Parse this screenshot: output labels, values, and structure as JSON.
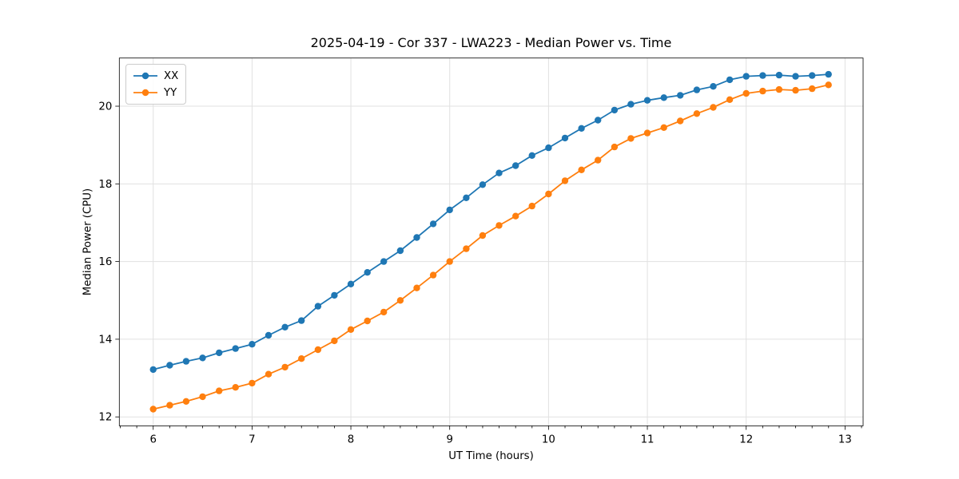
{
  "chart_data": {
    "type": "line",
    "title": "2025-04-19 - Cor 337 - LWA223 - Median Power vs. Time",
    "xlabel": "UT Time (hours)",
    "ylabel": "Median Power (CPU)",
    "xlim": [
      5.657,
      13.183
    ],
    "ylim": [
      11.77,
      21.24
    ],
    "xticks": [
      6,
      7,
      8,
      9,
      10,
      11,
      12,
      13
    ],
    "yticks": [
      12,
      14,
      16,
      18,
      20
    ],
    "x_minor_step": 0.16667,
    "grid": true,
    "legend_position": "upper-left",
    "marker": "circle",
    "x": [
      6.0,
      6.167,
      6.333,
      6.5,
      6.667,
      6.833,
      7.0,
      7.167,
      7.333,
      7.5,
      7.667,
      7.833,
      8.0,
      8.167,
      8.333,
      8.5,
      8.667,
      8.833,
      9.0,
      9.167,
      9.333,
      9.5,
      9.667,
      9.833,
      10.0,
      10.167,
      10.333,
      10.5,
      10.667,
      10.833,
      11.0,
      11.167,
      11.333,
      11.5,
      11.667,
      11.833,
      12.0,
      12.167,
      12.333,
      12.5,
      12.667,
      12.833
    ],
    "series": [
      {
        "name": "XX",
        "color": "#1f77b4",
        "values": [
          13.22,
          13.33,
          13.43,
          13.52,
          13.65,
          13.76,
          13.87,
          14.1,
          14.31,
          14.48,
          14.85,
          15.13,
          15.42,
          15.72,
          16.0,
          16.28,
          16.62,
          16.97,
          17.33,
          17.64,
          17.98,
          18.28,
          18.47,
          18.73,
          18.93,
          19.18,
          19.43,
          19.64,
          19.9,
          20.05,
          20.15,
          20.22,
          20.28,
          20.42,
          20.51,
          20.68,
          20.77,
          20.79,
          20.8,
          20.77,
          20.79,
          20.82
        ]
      },
      {
        "name": "YY",
        "color": "#ff7f0e",
        "values": [
          12.2,
          12.3,
          12.4,
          12.52,
          12.67,
          12.76,
          12.87,
          13.1,
          13.28,
          13.5,
          13.73,
          13.96,
          14.25,
          14.47,
          14.7,
          15.0,
          15.32,
          15.65,
          16.0,
          16.33,
          16.67,
          16.93,
          17.17,
          17.43,
          17.74,
          18.08,
          18.36,
          18.61,
          18.95,
          19.17,
          19.31,
          19.45,
          19.62,
          19.81,
          19.97,
          20.17,
          20.33,
          20.39,
          20.43,
          20.41,
          20.45,
          20.55
        ]
      }
    ]
  },
  "colors": {
    "background": "#ffffff",
    "axis": "#000000",
    "grid": "#e1e1e1",
    "text": "#000000"
  }
}
